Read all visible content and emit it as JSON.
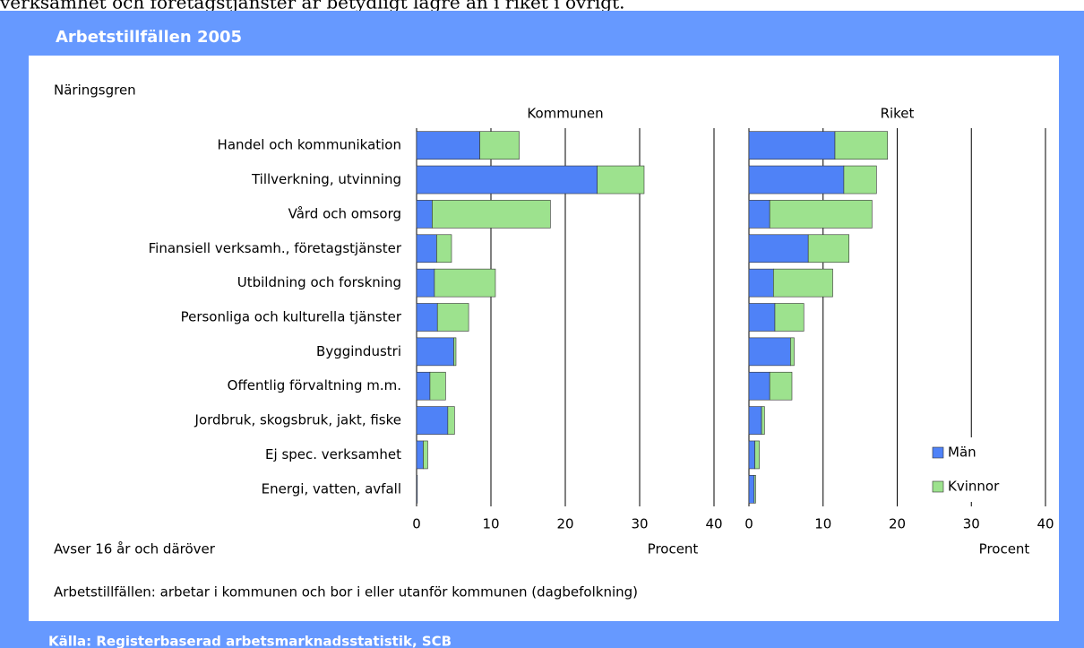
{
  "header": {
    "intro": "verksamhet och företagstjänster är betydligt lägre än i riket i övrigt.",
    "title": "Arbetstillfällen 2005",
    "source": "Källa: Registerbaserad arbetsmarknadsstatistik, SCB"
  },
  "y_axis_label": "Näringsgren",
  "notes": [
    "Avser 16 år och däröver",
    "Arbetstillfällen: arbetar i kommunen och bor i eller utanför kommunen (dagbefolkning)"
  ],
  "chart_data": [
    {
      "type": "bar",
      "orientation": "horizontal",
      "stacked": true,
      "title": "Kommunen",
      "xlabel": "Procent",
      "categories": [
        "Handel och kommunikation",
        "Tillverkning, utvinning",
        "Vård och omsorg",
        "Finansiell verksamh., företagstjänster",
        "Utbildning och forskning",
        "Personliga och kulturella tjänster",
        "Byggindustri",
        "Offentlig förvaltning m.m.",
        "Jordbruk, skogsbruk, jakt, fiske",
        "Ej spec. verksamhet",
        "Energi, vatten, avfall"
      ],
      "series": [
        {
          "color": "#4f82f7",
          "values": [
            8.5,
            24.3,
            2.1,
            2.7,
            2.4,
            2.8,
            5.0,
            1.8,
            4.2,
            0.9,
            0.1
          ]
        },
        {
          "color": "#9de28e",
          "values": [
            5.3,
            6.3,
            15.9,
            2.0,
            8.2,
            4.2,
            0.3,
            2.1,
            0.9,
            0.6,
            0
          ]
        }
      ],
      "xlim": [
        0,
        40
      ],
      "xticks": [
        0,
        10,
        20,
        30,
        40
      ],
      "grid": true
    },
    {
      "type": "bar",
      "orientation": "horizontal",
      "stacked": true,
      "title": "Riket",
      "xlabel": "Procent",
      "series": [
        {
          "name": "Män",
          "color": "#4f82f7",
          "values": [
            11.6,
            12.8,
            2.8,
            8.0,
            3.3,
            3.5,
            5.6,
            2.8,
            1.7,
            0.8,
            0.7
          ]
        },
        {
          "name": "Kvinnor",
          "color": "#9de28e",
          "values": [
            7.1,
            4.4,
            13.8,
            5.5,
            8.0,
            3.9,
            0.5,
            3.0,
            0.4,
            0.6,
            0.2
          ]
        }
      ],
      "xlim": [
        0,
        40
      ],
      "xticks": [
        0,
        10,
        20,
        30,
        40
      ],
      "grid": true,
      "legend": "lower right"
    }
  ]
}
